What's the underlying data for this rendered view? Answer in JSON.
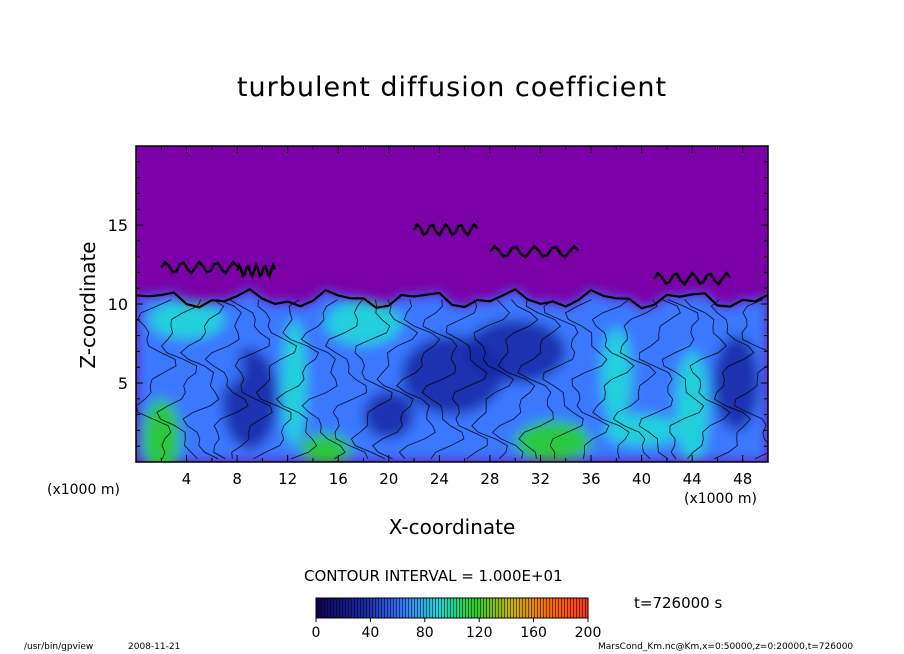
{
  "chart_data": {
    "type": "heatmap",
    "title": "turbulent diffusion coefficient",
    "xlabel": "X-coordinate",
    "ylabel": "Z-coordinate",
    "x_unit_left": "(x1000 m)",
    "x_unit_right": "(x1000 m)",
    "xlim": [
      0,
      50
    ],
    "ylim": [
      0,
      20
    ],
    "xticks": [
      4,
      8,
      12,
      16,
      20,
      24,
      28,
      32,
      36,
      40,
      44,
      48
    ],
    "yticks": [
      5,
      10,
      15
    ],
    "contour_interval": "CONTOUR INTERVAL = 1.000E+01",
    "colorbar": {
      "range": [
        0,
        200
      ],
      "ticks": [
        0,
        40,
        80,
        120,
        160,
        200
      ]
    },
    "annotations": {
      "time": "t=726000 s",
      "command": "/usr/bin/gpview",
      "date": "2008-11-21",
      "file": "MarsCond_Km.nc@Km,x=0:50000,z=0:20000,t=726000"
    },
    "colors": {
      "background_zero": "#7b00a8",
      "low": "#1a2aa8",
      "mid_low": "#3b78ff",
      "mid": "#1fd9d9",
      "mid_high": "#2bd02b",
      "high": "#ff3a1a"
    }
  }
}
